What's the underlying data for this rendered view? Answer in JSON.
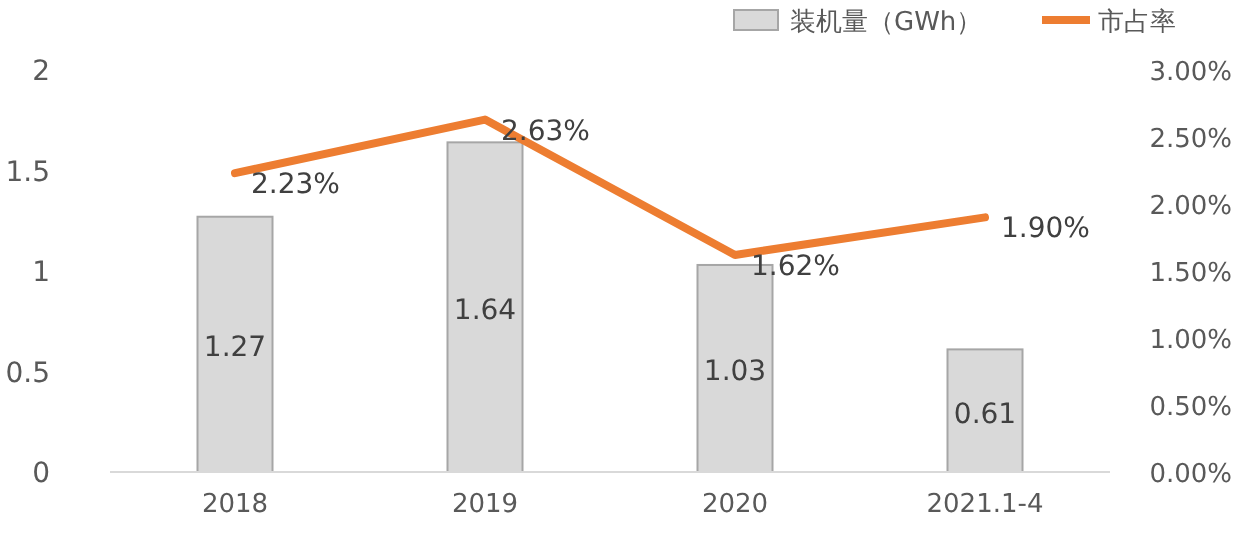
{
  "chart_data": {
    "type": "bar",
    "categories": [
      "2018",
      "2019",
      "2020",
      "2021.1-4"
    ],
    "series": [
      {
        "name": "装机量（GWh）",
        "color": "#d9d9d9",
        "values": [
          1.27,
          1.64,
          1.03,
          0.61
        ],
        "value_labels": [
          "1.27",
          "1.64",
          "1.03",
          "0.61"
        ]
      },
      {
        "name": "市占率",
        "type": "line",
        "axis": "y2",
        "color": "#ed7d31",
        "values": [
          2.23,
          2.63,
          1.62,
          1.9
        ],
        "value_labels": [
          "2.23%",
          "2.63%",
          "1.62%",
          "1.90%"
        ]
      }
    ],
    "ylim": [
      0,
      2
    ],
    "yticks": [
      0,
      0.5,
      1,
      1.5,
      2
    ],
    "y2lim": [
      0,
      3
    ],
    "y2ticks": [
      {
        "value": 0,
        "label": "0.00%"
      },
      {
        "value": 0.5,
        "label": "0.50%"
      },
      {
        "value": 1,
        "label": "1.00%"
      },
      {
        "value": 1.5,
        "label": "1.50%"
      },
      {
        "value": 2,
        "label": "2.00%"
      },
      {
        "value": 2.5,
        "label": "2.50%"
      },
      {
        "value": 3,
        "label": "3.00%"
      }
    ],
    "legend": "top right",
    "grid": false,
    "marker": "none"
  }
}
